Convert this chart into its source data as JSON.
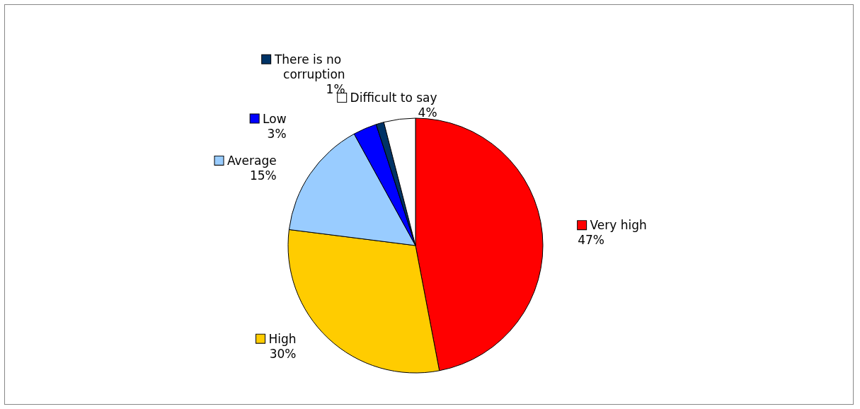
{
  "chart_data": {
    "type": "pie",
    "categories": [
      "Very high",
      "High",
      "Average",
      "Low",
      "There is no corruption",
      "Difficult to say"
    ],
    "values": [
      47,
      30,
      15,
      3,
      1,
      4
    ],
    "colors": [
      "#ff0000",
      "#ffcc00",
      "#99ccff",
      "#0000ff",
      "#003366",
      "#ffffff"
    ],
    "value_labels": [
      "47%",
      "30%",
      "15%",
      "3%",
      "1%",
      "4%"
    ],
    "legend": true
  }
}
